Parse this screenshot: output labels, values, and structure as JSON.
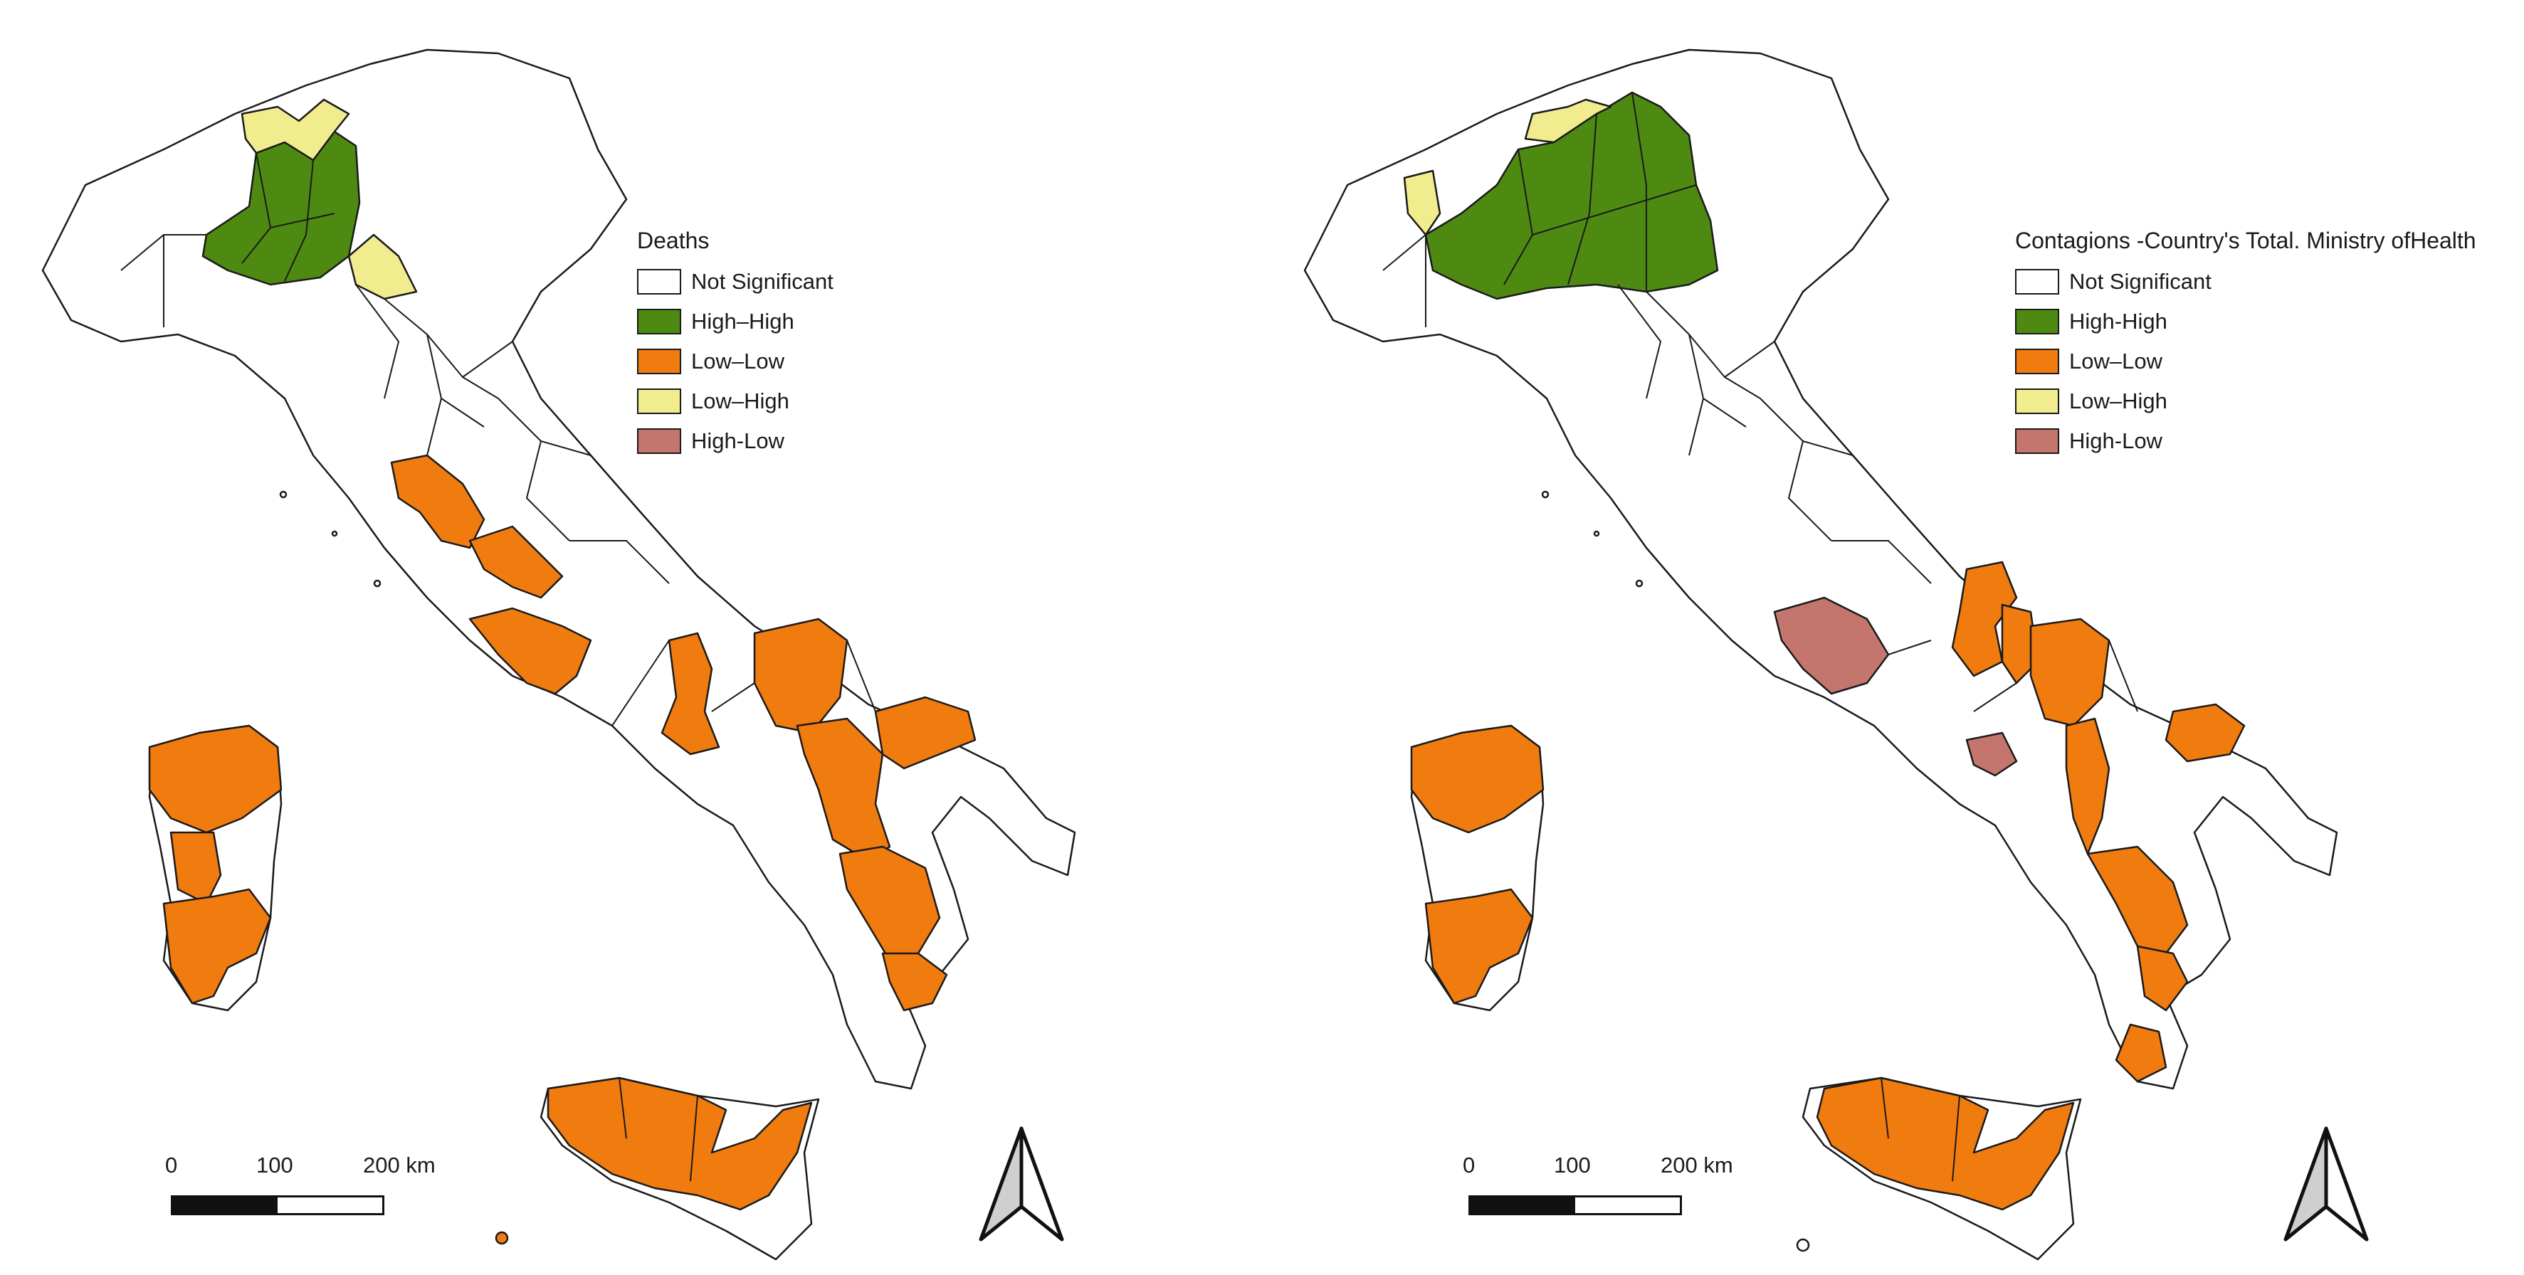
{
  "colors": {
    "not_significant": "#ffffff",
    "high_high": "#4e8a11",
    "low_low": "#f07b0e",
    "low_high": "#f1ec8e",
    "high_low": "#c4766e",
    "border": "#1a1a1a"
  },
  "maps": [
    {
      "title": "Deaths",
      "legend": [
        {
          "label": "Not Significant",
          "class": "not_significant"
        },
        {
          "label": "High–High",
          "class": "high_high"
        },
        {
          "label": "Low–Low",
          "class": "low_low"
        },
        {
          "label": "Low–High",
          "class": "low_high"
        },
        {
          "label": "High-Low",
          "class": "high_low"
        }
      ],
      "scale": {
        "labels": [
          "0",
          "100",
          "200 km"
        ]
      },
      "north_icon": "north-arrow-icon"
    },
    {
      "title": "Contagions -Country's Total. Ministry ofHealth",
      "legend": [
        {
          "label": "Not Significant",
          "class": "not_significant"
        },
        {
          "label": "High-High",
          "class": "high_high"
        },
        {
          "label": "Low–Low",
          "class": "low_low"
        },
        {
          "label": "Low–High",
          "class": "low_high"
        },
        {
          "label": "High-Low",
          "class": "high_low"
        }
      ],
      "scale": {
        "labels": [
          "0",
          "100",
          "200 km"
        ]
      },
      "north_icon": "north-arrow-icon"
    }
  ]
}
